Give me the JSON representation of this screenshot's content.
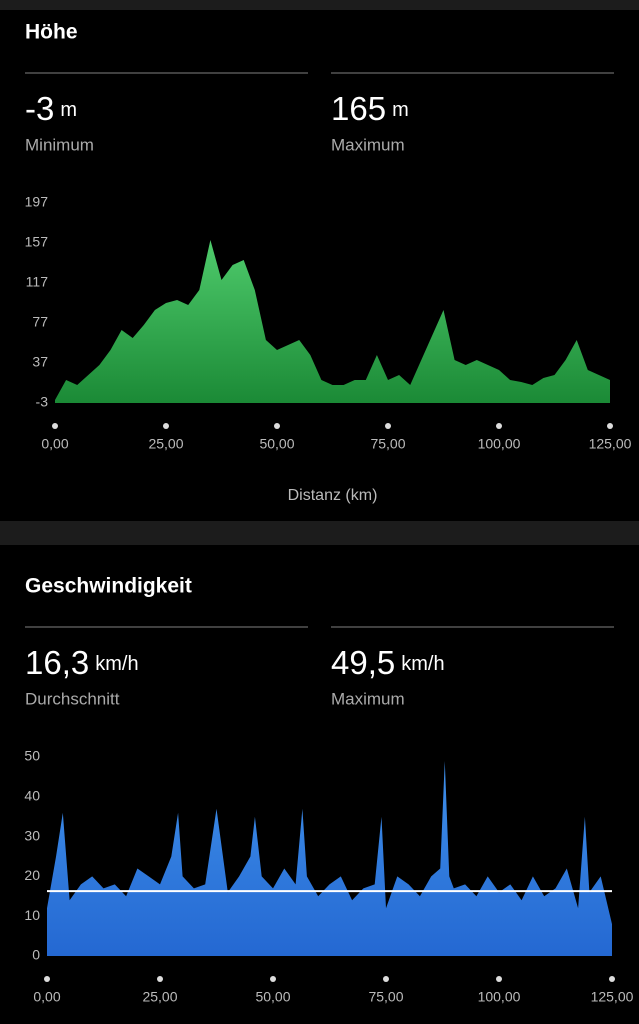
{
  "panels": [
    {
      "title": "Höhe",
      "stats": [
        {
          "value": "-3",
          "unit": "m",
          "label": "Minimum"
        },
        {
          "value": "165",
          "unit": "m",
          "label": "Maximum"
        }
      ]
    },
    {
      "title": "Geschwindigkeit",
      "stats": [
        {
          "value": "16,3",
          "unit": "km/h",
          "label": "Durchschnitt"
        },
        {
          "value": "49,5",
          "unit": "km/h",
          "label": "Maximum"
        }
      ]
    }
  ],
  "chart_data": [
    {
      "type": "area",
      "x_label": "Distanz (km)",
      "color": "#4fcb6c",
      "color2": "#1b8a36",
      "x": [
        0,
        2.5,
        5,
        7.5,
        10,
        12.5,
        15,
        17.5,
        20,
        22.5,
        25,
        27.5,
        30,
        32.5,
        35,
        37.5,
        40,
        42.5,
        45,
        47.5,
        50,
        52.5,
        55,
        57.5,
        60,
        62.5,
        65,
        67.5,
        70,
        72.5,
        75,
        77.5,
        80,
        82.5,
        85,
        87.5,
        90,
        92.5,
        95,
        97.5,
        100,
        102.5,
        105,
        107.5,
        110,
        112.5,
        115,
        117.5,
        120,
        122.5,
        125
      ],
      "values": [
        0,
        20,
        15,
        25,
        35,
        50,
        70,
        62,
        75,
        90,
        97,
        100,
        95,
        110,
        160,
        120,
        135,
        140,
        110,
        60,
        50,
        55,
        60,
        45,
        20,
        15,
        15,
        20,
        20,
        45,
        20,
        25,
        15,
        40,
        65,
        90,
        40,
        35,
        40,
        35,
        30,
        20,
        18,
        15,
        22,
        25,
        40,
        60,
        30,
        25,
        20
      ],
      "xlim": [
        0,
        125
      ],
      "ylim": [
        -3,
        197
      ],
      "yticks": [
        -3,
        37,
        77,
        117,
        157,
        197
      ],
      "xticks": [
        {
          "value": 0,
          "label": "0,00"
        },
        {
          "value": 25,
          "label": "25,00"
        },
        {
          "value": 50,
          "label": "50,00"
        },
        {
          "value": 75,
          "label": "75,00"
        },
        {
          "value": 100,
          "label": "100,00"
        },
        {
          "value": 125,
          "label": "125,00"
        }
      ]
    },
    {
      "type": "area",
      "color": "#3f90ea",
      "color2": "#2468d2",
      "reference_line": 16.3,
      "reference_color": "#ffffff",
      "x": [
        0,
        2,
        3.5,
        5,
        7.5,
        10,
        12.5,
        15,
        17.5,
        20,
        22.5,
        25,
        27.5,
        29,
        30,
        32.5,
        35,
        37.5,
        40,
        42.5,
        45,
        46,
        47.5,
        50,
        52.5,
        55,
        56.5,
        57.5,
        60,
        62.5,
        65,
        67.5,
        70,
        72.5,
        74,
        75,
        77.5,
        80,
        82.5,
        85,
        87,
        88,
        89,
        90,
        92.5,
        95,
        97.5,
        100,
        102.5,
        105,
        107.5,
        110,
        112.5,
        115,
        117.5,
        119,
        120,
        122.5,
        125
      ],
      "values": [
        12,
        25,
        36,
        14,
        18,
        20,
        17,
        18,
        15,
        22,
        20,
        18,
        25,
        36,
        20,
        17,
        18,
        37,
        16,
        20,
        25,
        35,
        20,
        17,
        22,
        18,
        37,
        20,
        15,
        18,
        20,
        14,
        17,
        18,
        35,
        12,
        20,
        18,
        15,
        20,
        22,
        49,
        20,
        17,
        18,
        15,
        20,
        16,
        18,
        14,
        20,
        15,
        17,
        22,
        12,
        35,
        16,
        20,
        8
      ],
      "xlim": [
        0,
        125
      ],
      "ylim": [
        0,
        50
      ],
      "yticks": [
        0,
        10,
        20,
        30,
        40,
        50
      ],
      "xticks": [
        {
          "value": 0,
          "label": "0,00"
        },
        {
          "value": 25,
          "label": "25,00"
        },
        {
          "value": 50,
          "label": "50,00"
        },
        {
          "value": 75,
          "label": "75,00"
        },
        {
          "value": 100,
          "label": "100,00"
        },
        {
          "value": 125,
          "label": "125,00"
        }
      ]
    }
  ]
}
